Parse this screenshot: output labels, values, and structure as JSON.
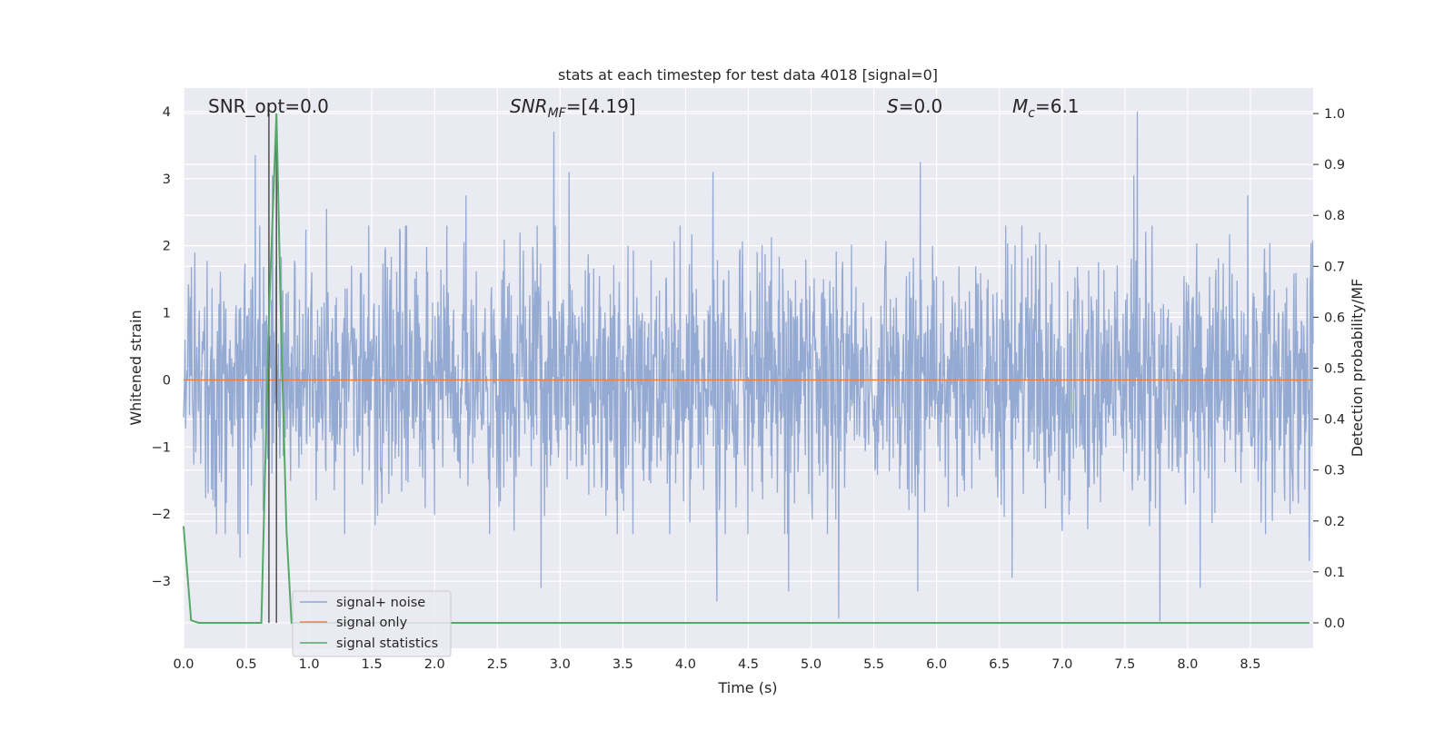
{
  "chart_data": {
    "type": "line",
    "title": "stats at each timestep for test data 4018 [signal=0]",
    "xlabel": "Time (s)",
    "ylabel": "Whitened strain",
    "y2label": "Detection probability/MF",
    "xlim": [
      0.0,
      9.0
    ],
    "ylim": [
      -4.0,
      4.35
    ],
    "y2lim": [
      -0.05,
      1.05
    ],
    "xticks": [
      "0.0",
      "0.5",
      "1.0",
      "1.5",
      "2.0",
      "2.5",
      "3.0",
      "3.5",
      "4.0",
      "4.5",
      "5.0",
      "5.5",
      "6.0",
      "6.5",
      "7.0",
      "7.5",
      "8.0",
      "8.5"
    ],
    "yticks": [
      "4",
      "3",
      "2",
      "1",
      "0",
      "−1",
      "−2",
      "−3"
    ],
    "y2ticks": [
      "1.0",
      "0.9",
      "0.8",
      "0.7",
      "0.6",
      "0.5",
      "0.4",
      "0.3",
      "0.2",
      "0.1",
      "0.0"
    ],
    "grid": true,
    "legend_position": "lower-left",
    "annotations": {
      "snr_opt": "SNR_opt=0.0",
      "snr_mf_main": "SNR",
      "snr_mf_sub": "MF",
      "snr_mf_value": "=[4.19]",
      "s_symbol": "S",
      "s_value": "=0.0",
      "mc_symbol": "M",
      "mc_sub": "c",
      "mc_value": "=6.1"
    },
    "series": [
      {
        "name": "signal+ noise",
        "color": "#8fa7d0",
        "style": "dense noise trace, approx. ±1.5 amplitude",
        "peaks": [
          [
            0.57,
            3.35
          ],
          [
            0.71,
            3.05
          ],
          [
            1.14,
            2.55
          ],
          [
            2.25,
            2.75
          ],
          [
            2.95,
            3.7
          ],
          [
            3.07,
            3.1
          ],
          [
            4.22,
            3.1
          ],
          [
            5.87,
            3.25
          ],
          [
            7.57,
            3.05
          ],
          [
            7.6,
            4.0
          ],
          [
            8.48,
            2.75
          ]
        ],
        "troughs": [
          [
            0.45,
            -2.65
          ],
          [
            2.85,
            -3.1
          ],
          [
            4.25,
            -3.3
          ],
          [
            4.82,
            -3.15
          ],
          [
            5.22,
            -3.55
          ],
          [
            5.85,
            -3.15
          ],
          [
            6.6,
            -2.95
          ],
          [
            7.78,
            -3.6
          ],
          [
            8.1,
            -3.1
          ],
          [
            8.97,
            -2.7
          ]
        ]
      },
      {
        "name": "signal only",
        "color": "#dd8452",
        "x": [
          0.0,
          9.0
        ],
        "y": [
          0.0,
          0.0
        ]
      },
      {
        "name": "signal statistics",
        "color": "#55a868",
        "axis": "right",
        "x": [
          0.0,
          0.06,
          0.12,
          0.5,
          0.62,
          0.68,
          0.74,
          0.78,
          0.82,
          0.86,
          8.97
        ],
        "y": [
          0.19,
          0.005,
          0.0,
          0.0,
          0.0,
          0.6,
          1.0,
          0.55,
          0.18,
          0.0,
          0.0
        ]
      }
    ],
    "vertical_lines": [
      {
        "x": 0.68,
        "color": "#505050"
      },
      {
        "x": 0.74,
        "color": "#505050"
      }
    ]
  }
}
